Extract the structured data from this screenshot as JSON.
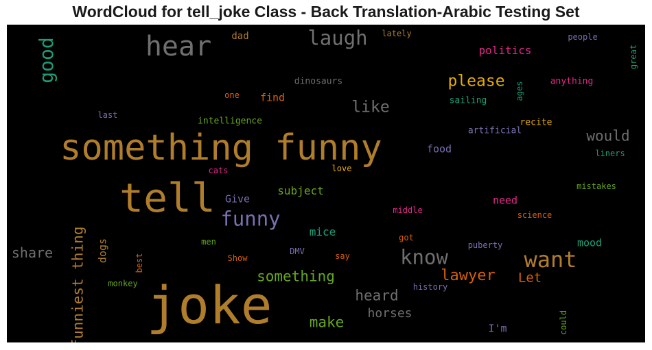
{
  "chart_data": {
    "type": "wordcloud",
    "title": "WordCloud for tell_joke Class - Back Translation-Arabic Testing Set",
    "background": "#000000",
    "palette": [
      "#b07d2b",
      "#6f6f6f",
      "#7a6fb0",
      "#1b9e77",
      "#d95f02",
      "#e7298a",
      "#66a61e",
      "#e6ab02"
    ],
    "words": [
      {
        "text": "something funny",
        "weight": 1.0,
        "color": "#b07d2b"
      },
      {
        "text": "joke",
        "weight": 1.1,
        "color": "#b07d2b"
      },
      {
        "text": "tell",
        "weight": 0.95,
        "color": "#b07d2b"
      },
      {
        "text": "hear",
        "weight": 0.55,
        "color": "#6f6f6f"
      },
      {
        "text": "laugh",
        "weight": 0.4,
        "color": "#6f6f6f"
      },
      {
        "text": "good",
        "weight": 0.38,
        "color": "#1b9e77"
      },
      {
        "text": "funny",
        "weight": 0.45,
        "color": "#7a6fb0"
      },
      {
        "text": "want",
        "weight": 0.45,
        "color": "#b07d2b"
      },
      {
        "text": "know",
        "weight": 0.42,
        "color": "#6f6f6f"
      },
      {
        "text": "funniest thing",
        "weight": 0.3,
        "color": "#b07d2b"
      },
      {
        "text": "please",
        "weight": 0.3,
        "color": "#e6ab02"
      },
      {
        "text": "like",
        "weight": 0.3,
        "color": "#6f6f6f"
      },
      {
        "text": "would",
        "weight": 0.28,
        "color": "#6f6f6f"
      },
      {
        "text": "lawyer",
        "weight": 0.3,
        "color": "#d95f02"
      },
      {
        "text": "something",
        "weight": 0.28,
        "color": "#66a61e"
      },
      {
        "text": "heard",
        "weight": 0.28,
        "color": "#6f6f6f"
      },
      {
        "text": "make",
        "weight": 0.28,
        "color": "#66a61e"
      },
      {
        "text": "share",
        "weight": 0.26,
        "color": "#6f6f6f"
      },
      {
        "text": "horses",
        "weight": 0.22,
        "color": "#6f6f6f"
      },
      {
        "text": "Let",
        "weight": 0.24,
        "color": "#d95f02"
      },
      {
        "text": "politics",
        "weight": 0.2,
        "color": "#e7298a"
      },
      {
        "text": "subject",
        "weight": 0.2,
        "color": "#66a61e"
      },
      {
        "text": "mice",
        "weight": 0.2,
        "color": "#1b9e77"
      },
      {
        "text": "mood",
        "weight": 0.19,
        "color": "#1b9e77"
      },
      {
        "text": "need",
        "weight": 0.18,
        "color": "#e7298a"
      },
      {
        "text": "food",
        "weight": 0.18,
        "color": "#7a6fb0"
      },
      {
        "text": "find",
        "weight": 0.18,
        "color": "#d95f02"
      },
      {
        "text": "dad",
        "weight": 0.17,
        "color": "#b07d2b"
      },
      {
        "text": "Give",
        "weight": 0.18,
        "color": "#7a6fb0"
      },
      {
        "text": "dogs",
        "weight": 0.18,
        "color": "#b07d2b"
      },
      {
        "text": "I'm",
        "weight": 0.18,
        "color": "#7a6fb0"
      },
      {
        "text": "dinosaurs",
        "weight": 0.14,
        "color": "#6f6f6f"
      },
      {
        "text": "intelligence",
        "weight": 0.13,
        "color": "#66a61e"
      },
      {
        "text": "artificial",
        "weight": 0.13,
        "color": "#7a6fb0"
      },
      {
        "text": "recite",
        "weight": 0.13,
        "color": "#e6ab02"
      },
      {
        "text": "sailing",
        "weight": 0.13,
        "color": "#1b9e77"
      },
      {
        "text": "anything",
        "weight": 0.13,
        "color": "#e7298a"
      },
      {
        "text": "people",
        "weight": 0.12,
        "color": "#7a6fb0"
      },
      {
        "text": "lately",
        "weight": 0.12,
        "color": "#b07d2b"
      },
      {
        "text": "one",
        "weight": 0.12,
        "color": "#d95f02"
      },
      {
        "text": "last",
        "weight": 0.12,
        "color": "#7a6fb0"
      },
      {
        "text": "cats",
        "weight": 0.12,
        "color": "#e7298a"
      },
      {
        "text": "love",
        "weight": 0.12,
        "color": "#e6ab02"
      },
      {
        "text": "liners",
        "weight": 0.12,
        "color": "#1b9e77"
      },
      {
        "text": "mistakes",
        "weight": 0.12,
        "color": "#66a61e"
      },
      {
        "text": "middle",
        "weight": 0.12,
        "color": "#e7298a"
      },
      {
        "text": "science",
        "weight": 0.12,
        "color": "#d95f02"
      },
      {
        "text": "men",
        "weight": 0.12,
        "color": "#66a61e"
      },
      {
        "text": "DMV",
        "weight": 0.12,
        "color": "#7a6fb0"
      },
      {
        "text": "got",
        "weight": 0.12,
        "color": "#d95f02"
      },
      {
        "text": "puberty",
        "weight": 0.12,
        "color": "#7a6fb0"
      },
      {
        "text": "Show",
        "weight": 0.12,
        "color": "#d95f02"
      },
      {
        "text": "say",
        "weight": 0.12,
        "color": "#d95f02"
      },
      {
        "text": "monkey",
        "weight": 0.12,
        "color": "#66a61e"
      },
      {
        "text": "history",
        "weight": 0.12,
        "color": "#7a6fb0"
      },
      {
        "text": "great",
        "weight": 0.12,
        "color": "#1b9e77"
      },
      {
        "text": "ages",
        "weight": 0.12,
        "color": "#1b9e77"
      },
      {
        "text": "best",
        "weight": 0.12,
        "color": "#d95f02"
      },
      {
        "text": "could",
        "weight": 0.12,
        "color": "#66a61e"
      }
    ]
  }
}
